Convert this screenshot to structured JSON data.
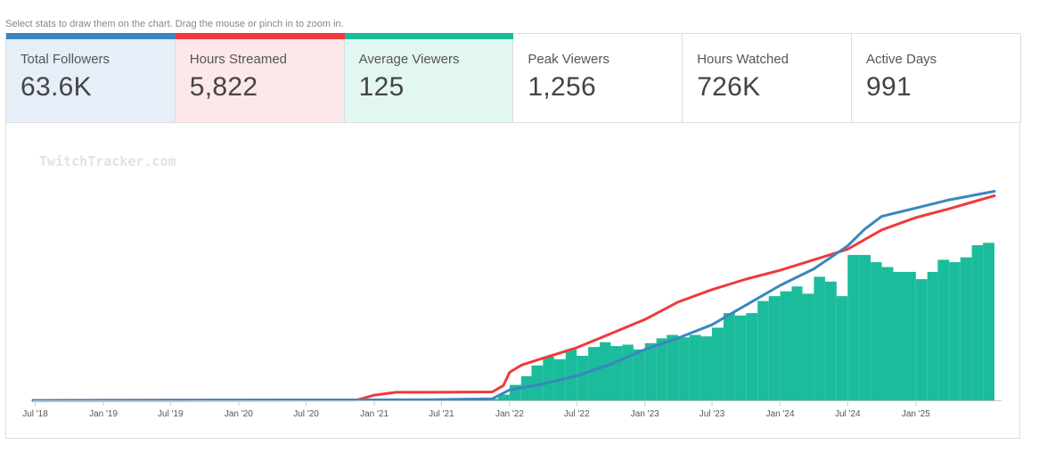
{
  "hint": "Select stats to draw them on the chart. Drag the mouse or pinch in to zoom in.",
  "stats": [
    {
      "label": "Total Followers",
      "value": "63.6K",
      "active": true,
      "color": "#3a86c0",
      "bg": "#e6eff7"
    },
    {
      "label": "Hours Streamed",
      "value": "5,822",
      "active": true,
      "color": "#ee3a3e",
      "bg": "#fde8e9"
    },
    {
      "label": "Average Viewers",
      "value": "125",
      "active": true,
      "color": "#1bbc9b",
      "bg": "#e3f7f2"
    },
    {
      "label": "Peak Viewers",
      "value": "1,256",
      "active": false,
      "color": "",
      "bg": "#ffffff"
    },
    {
      "label": "Hours Watched",
      "value": "726K",
      "active": false,
      "color": "",
      "bg": "#ffffff"
    },
    {
      "label": "Active Days",
      "value": "991",
      "active": false,
      "color": "",
      "bg": "#ffffff"
    }
  ],
  "watermark": "TwitchTracker.com",
  "chart_data": {
    "type": "area",
    "x_range": [
      "2018-06-25",
      "2025-08-01"
    ],
    "x_ticks": [
      "Jul '18",
      "Jan '19",
      "Jul '19",
      "Jan '20",
      "Jul '20",
      "Jan '21",
      "Jul '21",
      "Jan '22",
      "Jul '22",
      "Jan '23",
      "Jul '23",
      "Jan '24",
      "Jul '24",
      "Jan '25"
    ],
    "x_tick_dates": [
      "2018-07-01",
      "2019-01-01",
      "2019-07-01",
      "2020-01-01",
      "2020-07-01",
      "2021-01-01",
      "2021-07-01",
      "2022-01-01",
      "2022-07-01",
      "2023-01-01",
      "2023-07-01",
      "2024-01-01",
      "2024-07-01",
      "2025-01-01"
    ],
    "grid": false,
    "series": [
      {
        "name": "Average Viewers",
        "kind": "bars",
        "color": "#1bbc9b",
        "ylim": [
          0,
          480
        ],
        "x": [
          "2019-12-01",
          "2020-06-01",
          "2020-09-01",
          "2021-01-01",
          "2021-03-01",
          "2021-06-01",
          "2021-09-01",
          "2021-11-15",
          "2021-12-01",
          "2022-01-01",
          "2022-02-01",
          "2022-03-01",
          "2022-04-01",
          "2022-05-01",
          "2022-06-01",
          "2022-07-01",
          "2022-08-01",
          "2022-09-01",
          "2022-10-01",
          "2022-11-01",
          "2022-12-01",
          "2023-01-01",
          "2023-02-01",
          "2023-03-01",
          "2023-04-01",
          "2023-05-01",
          "2023-06-01",
          "2023-07-01",
          "2023-08-01",
          "2023-09-01",
          "2023-10-01",
          "2023-11-01",
          "2023-12-01",
          "2024-01-01",
          "2024-02-01",
          "2024-03-01",
          "2024-04-01",
          "2024-05-01",
          "2024-06-01",
          "2024-07-01",
          "2024-08-01",
          "2024-09-01",
          "2024-10-01",
          "2024-11-01",
          "2024-12-01",
          "2025-01-01",
          "2025-02-01",
          "2025-03-01",
          "2025-04-01",
          "2025-05-01",
          "2025-06-01",
          "2025-07-01"
        ],
        "values": [
          2,
          2,
          2,
          2,
          2,
          2,
          2,
          3,
          12,
          32,
          50,
          72,
          90,
          85,
          105,
          92,
          110,
          120,
          112,
          115,
          105,
          118,
          128,
          135,
          130,
          135,
          132,
          150,
          180,
          175,
          180,
          205,
          215,
          225,
          235,
          220,
          255,
          245,
          215,
          300,
          300,
          285,
          275,
          265,
          265,
          250,
          265,
          290,
          285,
          295,
          320,
          325
        ]
      },
      {
        "name": "Hours Streamed",
        "kind": "line",
        "color": "#ee3a3e",
        "ylim": [
          0,
          6620
        ],
        "x": [
          "2018-06-25",
          "2020-11-15",
          "2021-01-01",
          "2021-03-01",
          "2021-06-01",
          "2021-11-15",
          "2021-12-15",
          "2022-01-01",
          "2022-02-01",
          "2022-04-01",
          "2022-07-01",
          "2022-10-01",
          "2023-01-01",
          "2023-04-01",
          "2023-07-01",
          "2023-10-01",
          "2024-01-01",
          "2024-04-01",
          "2024-07-01",
          "2024-10-01",
          "2025-01-01",
          "2025-04-01",
          "2025-08-01"
        ],
        "values": [
          0,
          10,
          150,
          230,
          230,
          240,
          420,
          800,
          1000,
          1200,
          1500,
          1900,
          2300,
          2800,
          3150,
          3450,
          3700,
          4000,
          4300,
          4850,
          5200,
          5450,
          5822
        ]
      },
      {
        "name": "Total Followers",
        "kind": "line",
        "color": "#3a86c0",
        "ylim": [
          0,
          70800
        ],
        "x": [
          "2018-06-25",
          "2021-06-01",
          "2021-11-15",
          "2022-01-01",
          "2022-04-01",
          "2022-07-01",
          "2022-10-01",
          "2023-01-01",
          "2023-04-01",
          "2023-07-01",
          "2023-10-01",
          "2024-01-01",
          "2024-04-01",
          "2024-07-01",
          "2024-08-15",
          "2024-10-01",
          "2025-01-01",
          "2025-04-01",
          "2025-08-01"
        ],
        "values": [
          0,
          200,
          500,
          3200,
          5000,
          7500,
          11000,
          15500,
          19000,
          23000,
          29000,
          35000,
          40000,
          47000,
          52000,
          56000,
          58500,
          61000,
          63600
        ]
      }
    ]
  }
}
